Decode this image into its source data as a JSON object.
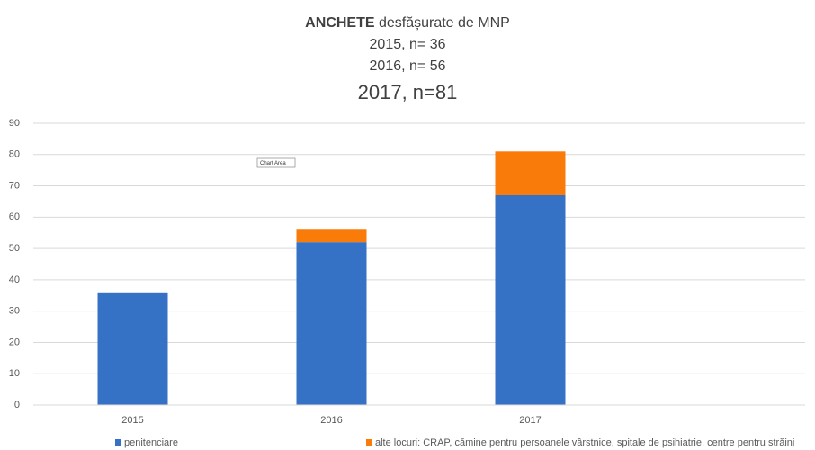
{
  "chart_data": {
    "type": "bar",
    "stacked": true,
    "title": {
      "bold": "ANCHETE",
      "rest": "desfășurate de MNP"
    },
    "subtitle": [
      "2015, n= 36",
      "2016, n= 56",
      "2017, n=81"
    ],
    "annotation": "Chart Area",
    "categories": [
      "2015",
      "2016",
      "2017"
    ],
    "series": [
      {
        "name": "penitenciare",
        "color": "#3572c6",
        "values": [
          36,
          52,
          67
        ]
      },
      {
        "name": "alte locuri: CRAP, cămine pentru persoanele vârstnice, spitale de psihiatrie, centre pentru străini",
        "color": "#f97b0a",
        "values": [
          null,
          4,
          14
        ]
      }
    ],
    "ylim": [
      0,
      90
    ],
    "yticks": [
      0,
      10,
      20,
      30,
      40,
      50,
      60,
      70,
      80,
      90
    ],
    "grid": true,
    "legend": "bottom"
  }
}
